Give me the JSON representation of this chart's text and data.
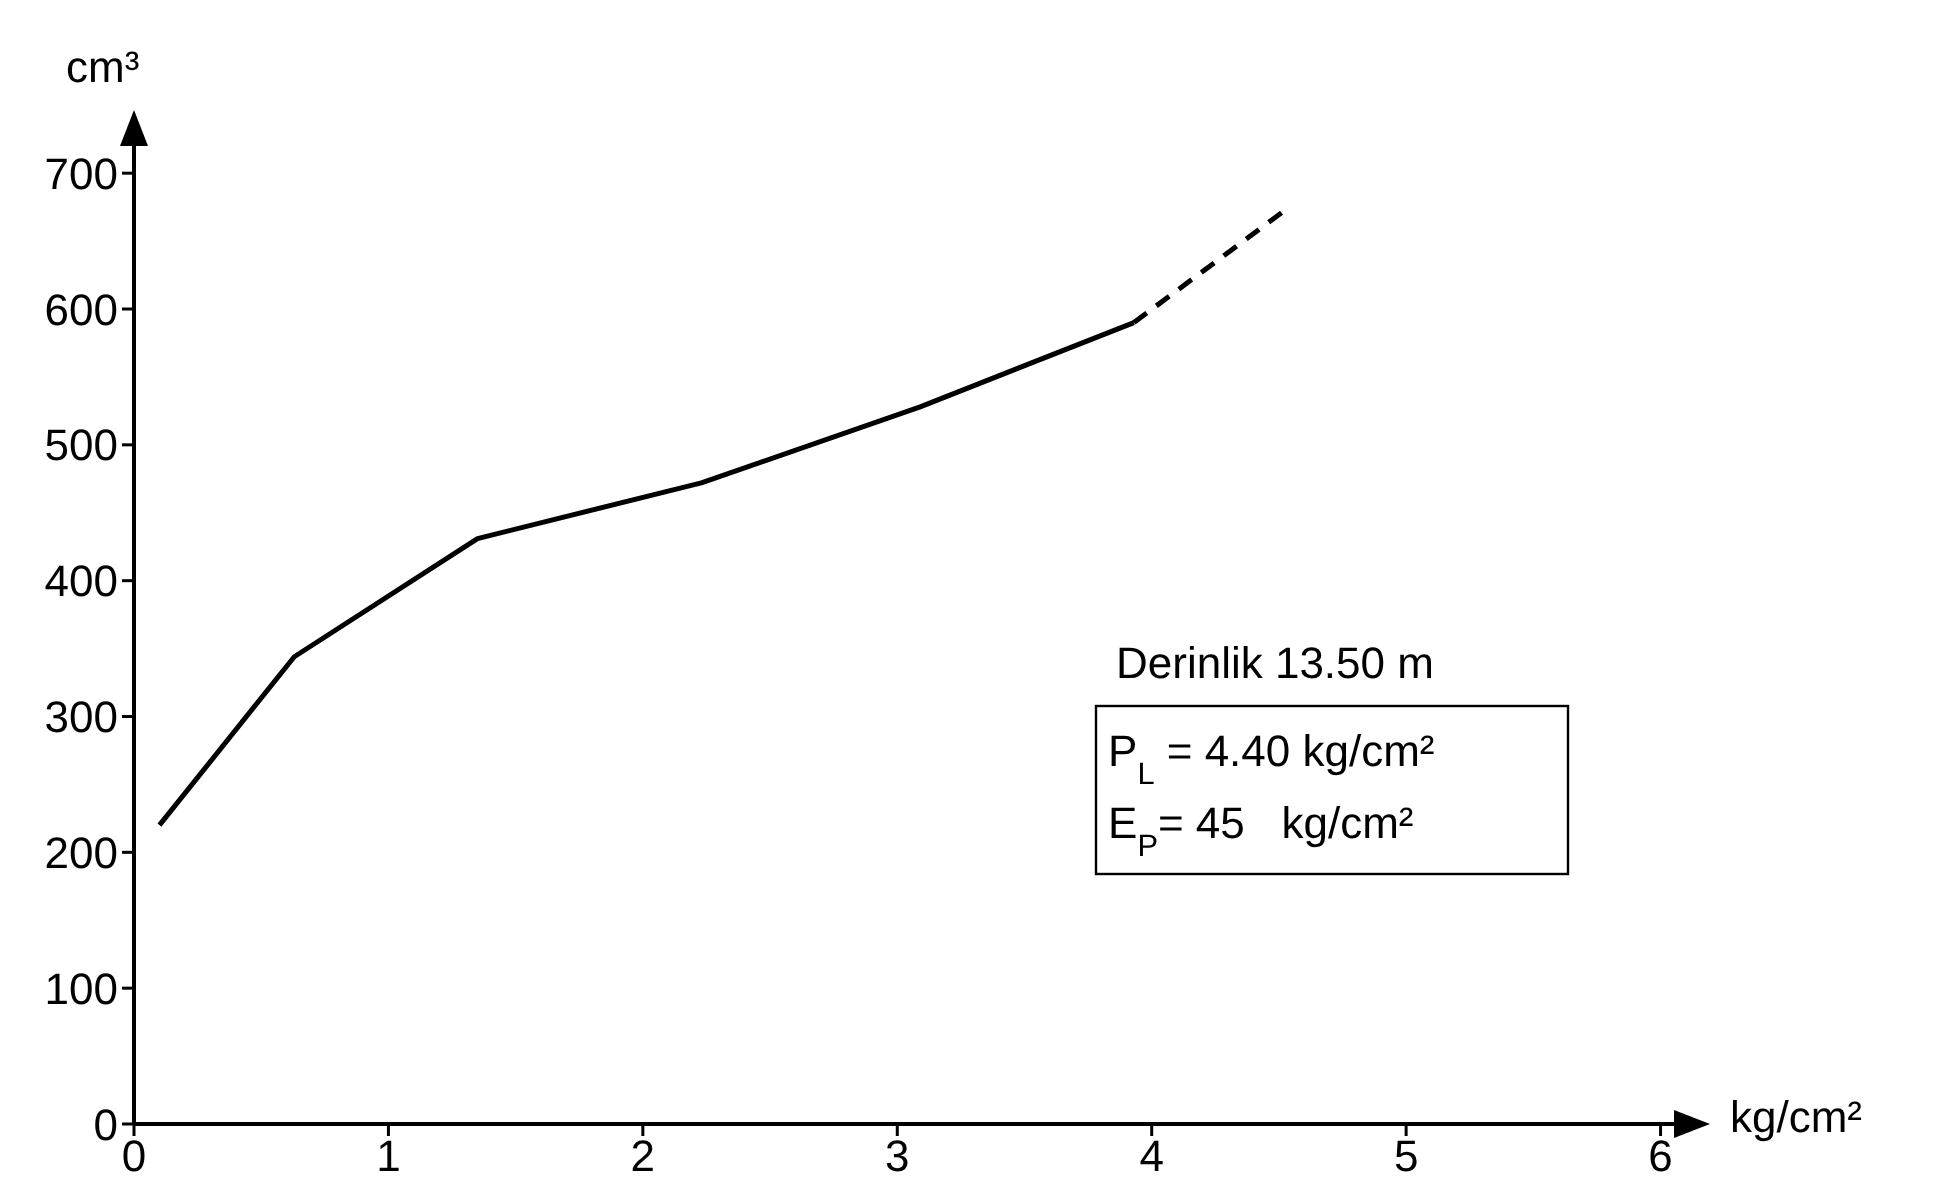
{
  "chart_data": {
    "type": "line",
    "xlabel": "kg/cm²",
    "ylabel": "cm³",
    "xlim": [
      0,
      6.1
    ],
    "ylim": [
      0,
      720
    ],
    "xticks": [
      0,
      1,
      2,
      3,
      4,
      5,
      6
    ],
    "yticks": [
      0,
      100,
      200,
      300,
      400,
      500,
      600,
      700
    ],
    "grid": false,
    "marker": "none",
    "series": [
      {
        "color": "#000000",
        "line_style": "solid",
        "x": [
          0.1,
          0.63,
          1.35,
          2.23,
          3.09,
          3.93
        ],
        "values": [
          220,
          344,
          431,
          472,
          528,
          590
        ]
      },
      {
        "color": "#000000",
        "line_style": "dashed",
        "x": [
          3.93,
          4.54
        ],
        "values": [
          590,
          675
        ]
      }
    ],
    "annotations": [
      "Derinlik 13.50 m",
      "P$_{L}$ = 4.40 kg/cm²",
      "E$_{P}$= 45   kg/cm²"
    ]
  }
}
